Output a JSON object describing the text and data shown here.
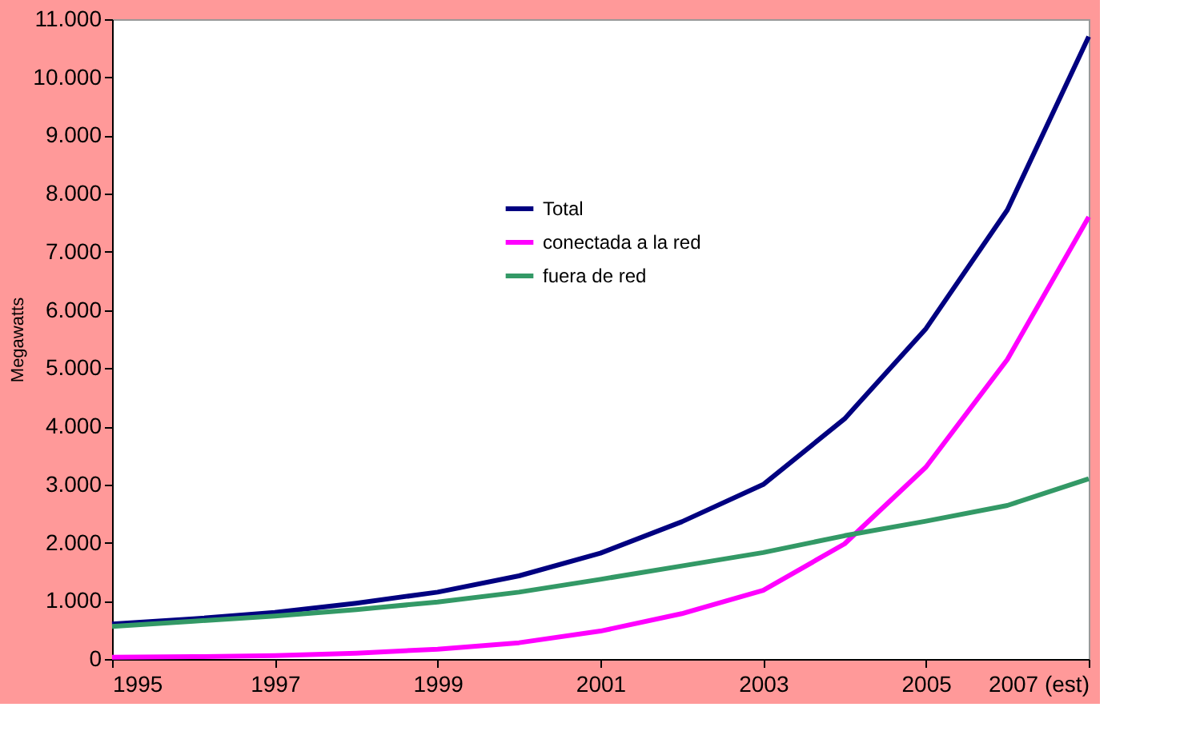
{
  "chart_data": {
    "type": "line",
    "ylabel": "Megawatts",
    "x": [
      1995,
      1996,
      1997,
      1998,
      1999,
      2000,
      2001,
      2002,
      2003,
      2004,
      2005,
      2006,
      2007
    ],
    "series": [
      {
        "name": "Total",
        "color": "#000080",
        "values": [
          600,
          690,
          800,
          960,
          1150,
          1430,
          1820,
          2360,
          3000,
          4130,
          5680,
          7720,
          10700
        ]
      },
      {
        "name": "conectada a la red",
        "color": "#ff00ff",
        "values": [
          30,
          40,
          60,
          100,
          170,
          280,
          480,
          780,
          1180,
          1980,
          3300,
          5150,
          7600
        ]
      },
      {
        "name": "fuera de red",
        "color": "#339966",
        "values": [
          560,
          650,
          740,
          850,
          980,
          1150,
          1370,
          1600,
          1830,
          2120,
          2370,
          2640,
          3100
        ]
      }
    ],
    "xlim": [
      1995,
      2007
    ],
    "xticks": [
      1995,
      1997,
      1999,
      2001,
      2003,
      2005,
      {
        "value": 2007,
        "label": "2007 (est)"
      }
    ],
    "ylim": [
      0,
      11000
    ],
    "yticks": [
      0,
      {
        "value": 1000,
        "label": "1.000"
      },
      {
        "value": 2000,
        "label": "2.000"
      },
      {
        "value": 3000,
        "label": "3.000"
      },
      {
        "value": 4000,
        "label": "4.000"
      },
      {
        "value": 5000,
        "label": "5.000"
      },
      {
        "value": 6000,
        "label": "6.000"
      },
      {
        "value": 7000,
        "label": "7.000"
      },
      {
        "value": 8000,
        "label": "8.000"
      },
      {
        "value": 9000,
        "label": "9.000"
      },
      {
        "value": 10000,
        "label": "10.000"
      },
      {
        "value": 11000,
        "label": "11.000"
      }
    ],
    "grid": false,
    "legend": "top",
    "marker": "none",
    "line_style": "solid"
  }
}
